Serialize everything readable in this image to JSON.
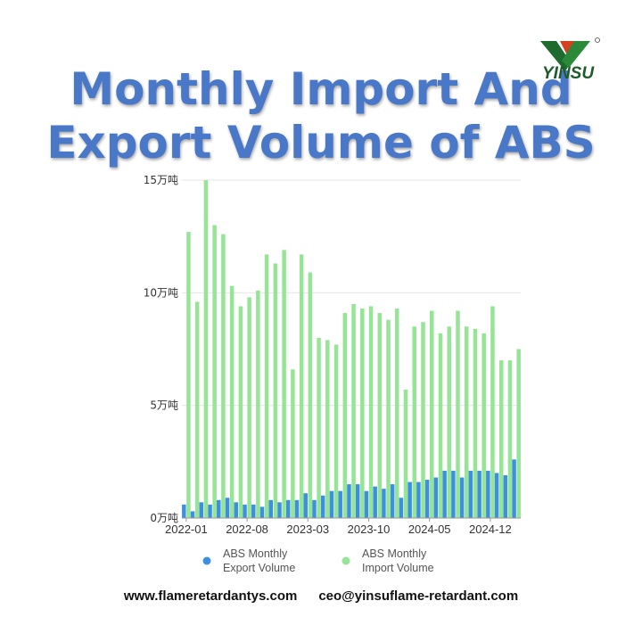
{
  "header": {
    "title_line1": "Monthly Import And",
    "title_line2": "Export Volume of ABS",
    "logo_text": "YINSU"
  },
  "footer": {
    "website": "www.flameretardantys.com",
    "email": "ceo@yinsuflame-retardant.com"
  },
  "colors": {
    "export": "#3d8fe0",
    "import": "#96e596",
    "grid": "#e6e6e6",
    "title": "#4a78c8"
  },
  "chart_data": {
    "type": "bar",
    "y_unit": "万吨",
    "ylim": [
      0,
      15
    ],
    "y_ticks": [
      {
        "value": 0,
        "label": "0万吨"
      },
      {
        "value": 5,
        "label": "5万吨"
      },
      {
        "value": 10,
        "label": "10万吨"
      },
      {
        "value": 15,
        "label": "15万吨"
      }
    ],
    "x_tick_labels": [
      "2022-01",
      "2022-08",
      "2023-03",
      "2023-10",
      "2024-05",
      "2024-12"
    ],
    "categories": [
      "2022-01",
      "2022-02",
      "2022-03",
      "2022-04",
      "2022-05",
      "2022-06",
      "2022-07",
      "2022-08",
      "2022-09",
      "2022-10",
      "2022-11",
      "2022-12",
      "2023-01",
      "2023-02",
      "2023-03",
      "2023-04",
      "2023-05",
      "2023-06",
      "2023-07",
      "2023-08",
      "2023-09",
      "2023-10",
      "2023-11",
      "2023-12",
      "2024-01",
      "2024-02",
      "2024-03",
      "2024-04",
      "2024-05",
      "2024-06",
      "2024-07",
      "2024-08",
      "2024-09",
      "2024-10",
      "2024-11",
      "2024-12",
      "2025-01",
      "2025-02",
      "2025-03"
    ],
    "series": [
      {
        "name": "ABS Monthly Export Volume",
        "values": [
          0.6,
          0.3,
          0.7,
          0.6,
          0.8,
          0.9,
          0.7,
          0.6,
          0.6,
          0.5,
          0.8,
          0.7,
          0.8,
          0.8,
          1.1,
          0.8,
          1.0,
          1.2,
          1.2,
          1.5,
          1.5,
          1.2,
          1.4,
          1.3,
          1.5,
          0.9,
          1.6,
          1.6,
          1.7,
          1.8,
          2.1,
          2.1,
          1.8,
          2.1,
          2.1,
          2.1,
          2.0,
          1.9,
          2.6
        ]
      },
      {
        "name": "ABS Monthly Import Volume",
        "values": [
          12.7,
          9.6,
          15.0,
          13.0,
          12.6,
          10.3,
          9.4,
          9.8,
          10.1,
          11.7,
          11.3,
          11.9,
          6.6,
          11.7,
          10.9,
          8.0,
          7.9,
          7.7,
          9.1,
          9.5,
          9.3,
          9.4,
          9.1,
          8.8,
          9.3,
          5.7,
          8.5,
          8.7,
          9.2,
          8.2,
          8.5,
          9.2,
          8.5,
          8.4,
          8.2,
          9.4,
          7.0,
          7.0,
          7.5
        ]
      }
    ],
    "legend": "bottom",
    "grid": true
  }
}
